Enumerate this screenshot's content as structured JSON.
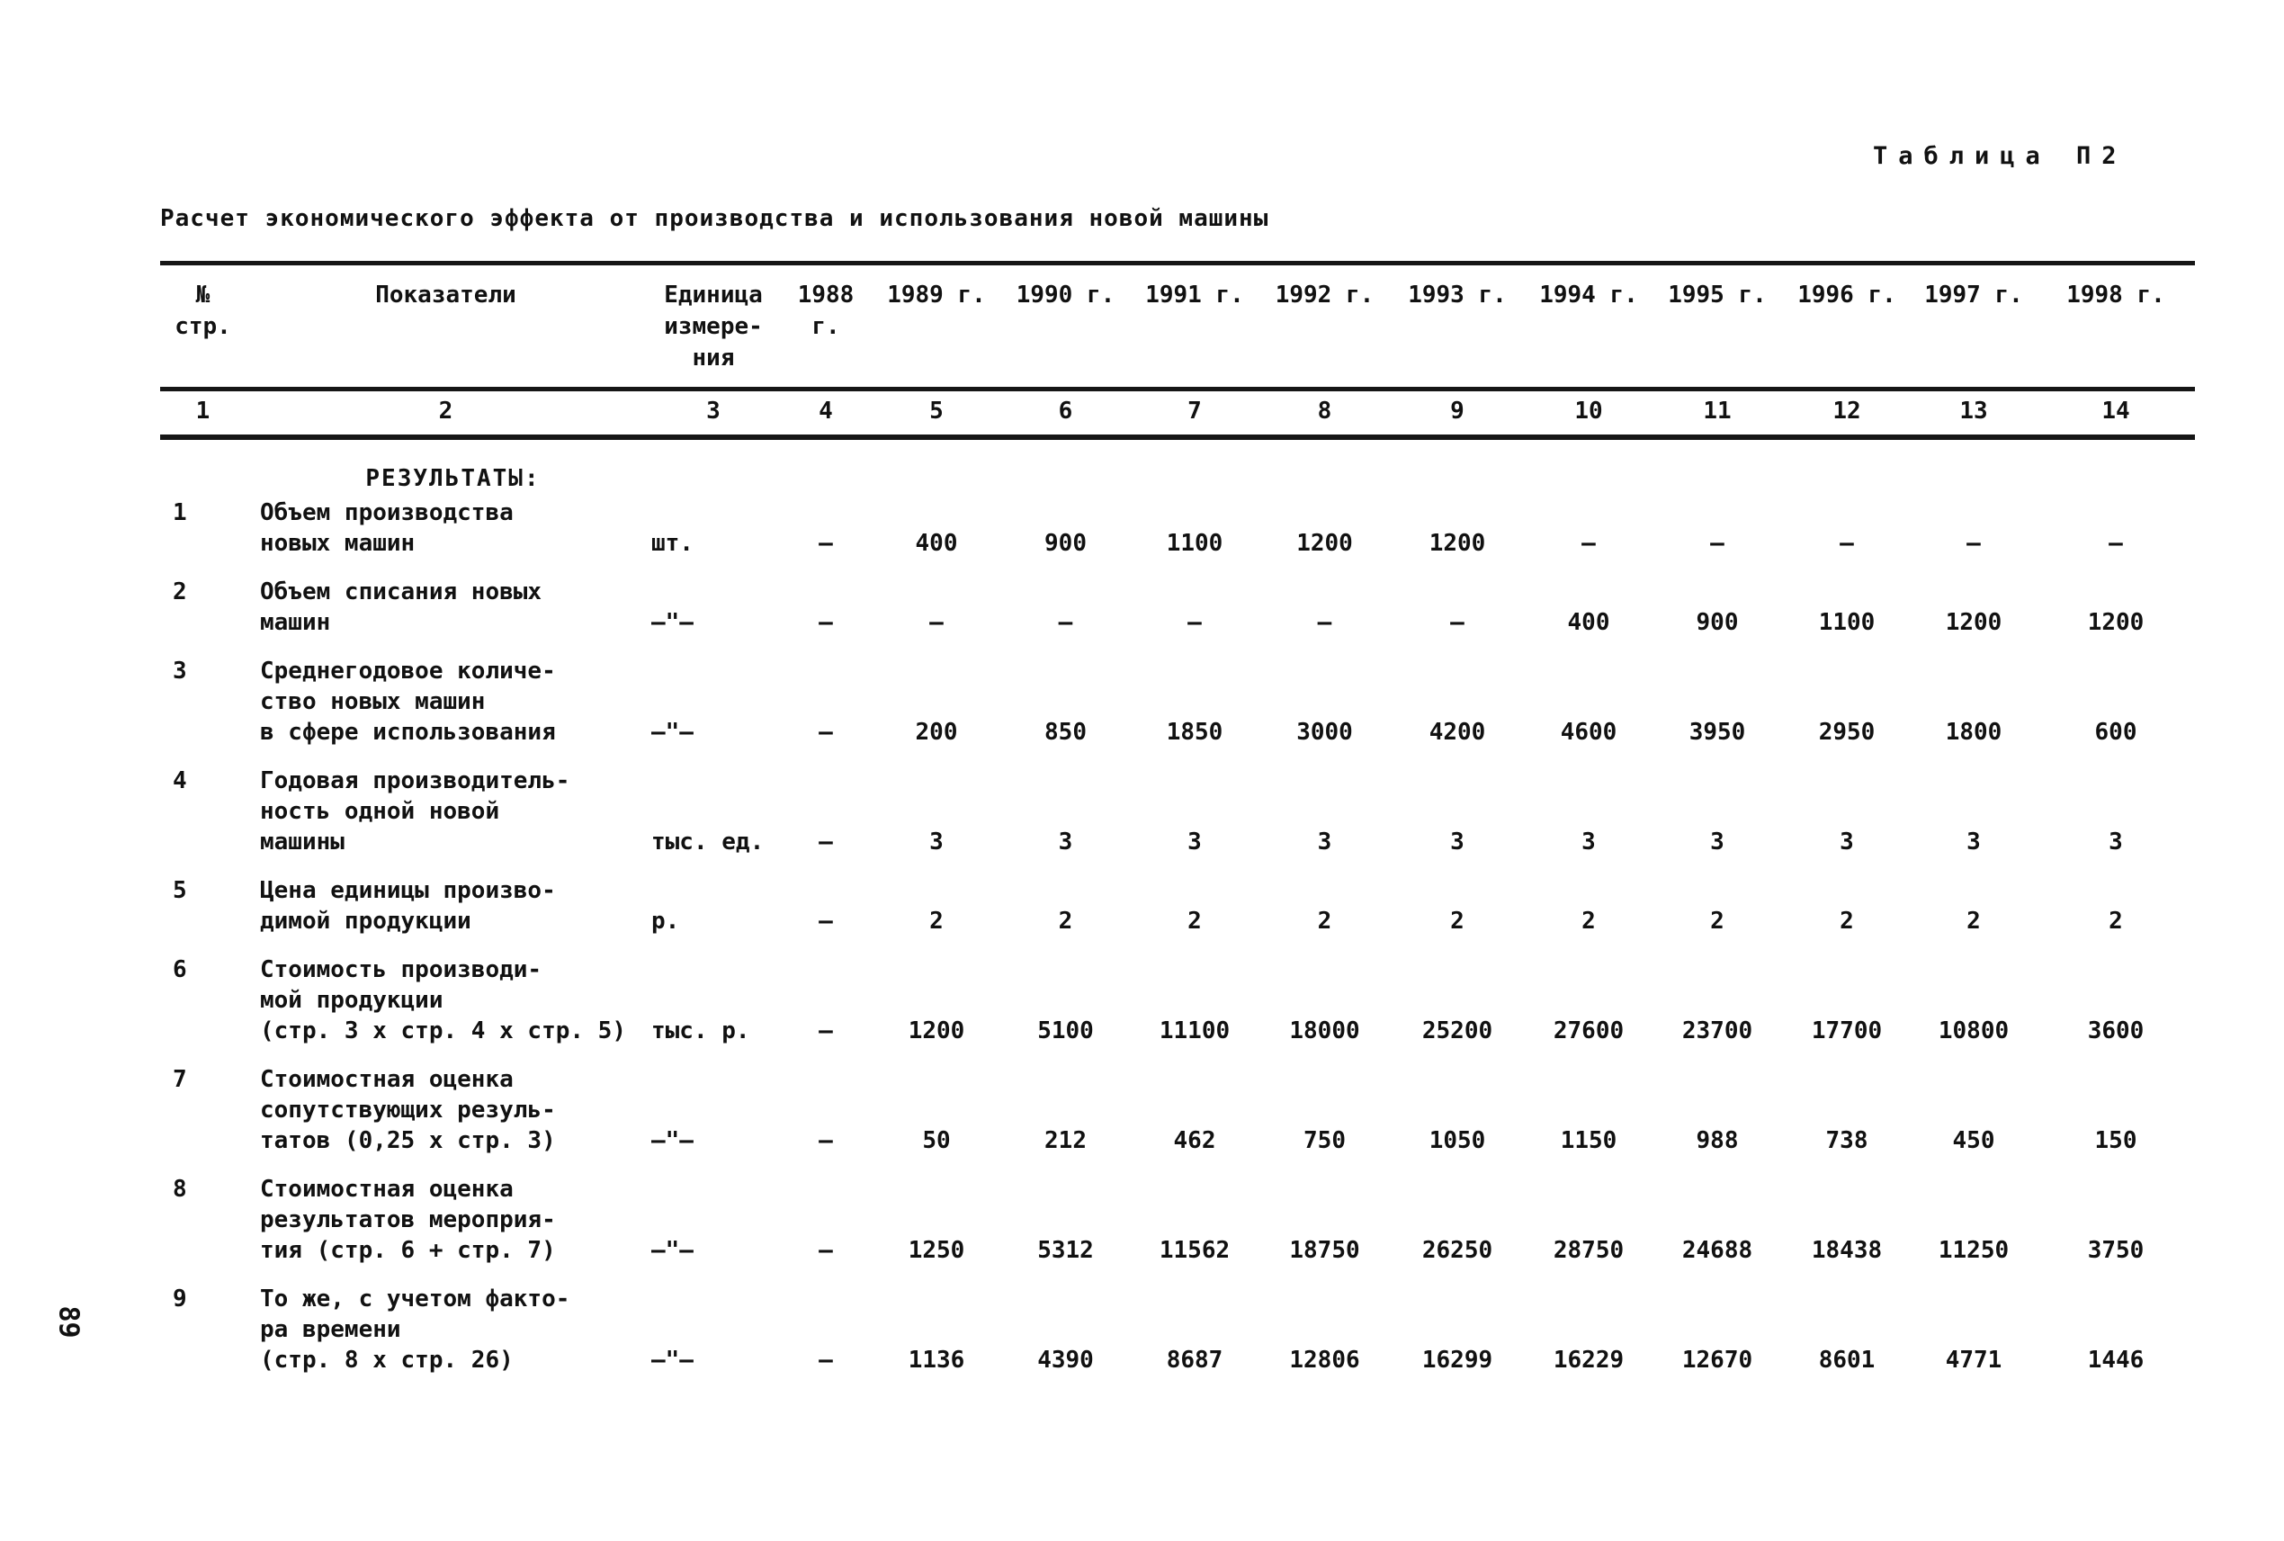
{
  "page": {
    "table_label": "Таблица П2",
    "title": "Расчет экономического эффекта от производства и использования новой машины",
    "page_number": "89"
  },
  "table": {
    "headers": {
      "line_no": "№\nстр.",
      "indicator": "Показатели",
      "unit": "Единица\nизмере-\nния",
      "years": [
        "1988 г.",
        "1989 г.",
        "1990 г.",
        "1991 г.",
        "1992 г.",
        "1993 г.",
        "1994 г.",
        "1995 г.",
        "1996 г.",
        "1997 г.",
        "1998 г."
      ]
    },
    "column_numbers": [
      "1",
      "2",
      "3",
      "4",
      "5",
      "6",
      "7",
      "8",
      "9",
      "10",
      "11",
      "12",
      "13",
      "14"
    ],
    "section_heading": "РЕЗУЛЬТАТЫ:",
    "rows": [
      {
        "no": "1",
        "indicator": "Объем производства\nновых машин",
        "unit": "шт.",
        "values": [
          "–",
          "400",
          "900",
          "1100",
          "1200",
          "1200",
          "–",
          "–",
          "–",
          "–",
          "–"
        ]
      },
      {
        "no": "2",
        "indicator": "Объем списания новых\nмашин",
        "unit": "–\"–",
        "values": [
          "–",
          "–",
          "–",
          "–",
          "–",
          "–",
          "400",
          "900",
          "1100",
          "1200",
          "1200"
        ]
      },
      {
        "no": "3",
        "indicator": "Среднегодовое количе-\nство новых машин\nв сфере использования",
        "unit": "–\"–",
        "values": [
          "–",
          "200",
          "850",
          "1850",
          "3000",
          "4200",
          "4600",
          "3950",
          "2950",
          "1800",
          "600"
        ]
      },
      {
        "no": "4",
        "indicator": "Годовая производитель-\nность одной новой\nмашины",
        "unit": "тыс. ед.",
        "values": [
          "–",
          "3",
          "3",
          "3",
          "3",
          "3",
          "3",
          "3",
          "3",
          "3",
          "3"
        ]
      },
      {
        "no": "5",
        "indicator": "Цена единицы произво-\nдимой продукции",
        "unit": "р.",
        "values": [
          "–",
          "2",
          "2",
          "2",
          "2",
          "2",
          "2",
          "2",
          "2",
          "2",
          "2"
        ]
      },
      {
        "no": "6",
        "indicator": "Стоимость производи-\nмой продукции\n(стр. 3 х стр. 4 х стр. 5)",
        "unit": "тыс. р.",
        "values": [
          "–",
          "1200",
          "5100",
          "11100",
          "18000",
          "25200",
          "27600",
          "23700",
          "17700",
          "10800",
          "3600"
        ]
      },
      {
        "no": "7",
        "indicator": "Стоимостная оценка\nсопутствующих резуль-\nтатов (0,25 х стр. 3)",
        "unit": "–\"–",
        "values": [
          "–",
          "50",
          "212",
          "462",
          "750",
          "1050",
          "1150",
          "988",
          "738",
          "450",
          "150"
        ]
      },
      {
        "no": "8",
        "indicator": "Стоимостная оценка\nрезультатов мероприя-\nтия (стр. 6 + стр. 7)",
        "unit": "–\"–",
        "values": [
          "–",
          "1250",
          "5312",
          "11562",
          "18750",
          "26250",
          "28750",
          "24688",
          "18438",
          "11250",
          "3750"
        ]
      },
      {
        "no": "9",
        "indicator": "То же, с учетом факто-\nра времени\n(стр. 8 х стр. 26)",
        "unit": "–\"–",
        "values": [
          "–",
          "1136",
          "4390",
          "8687",
          "12806",
          "16299",
          "16229",
          "12670",
          "8601",
          "4771",
          "1446"
        ]
      }
    ]
  }
}
